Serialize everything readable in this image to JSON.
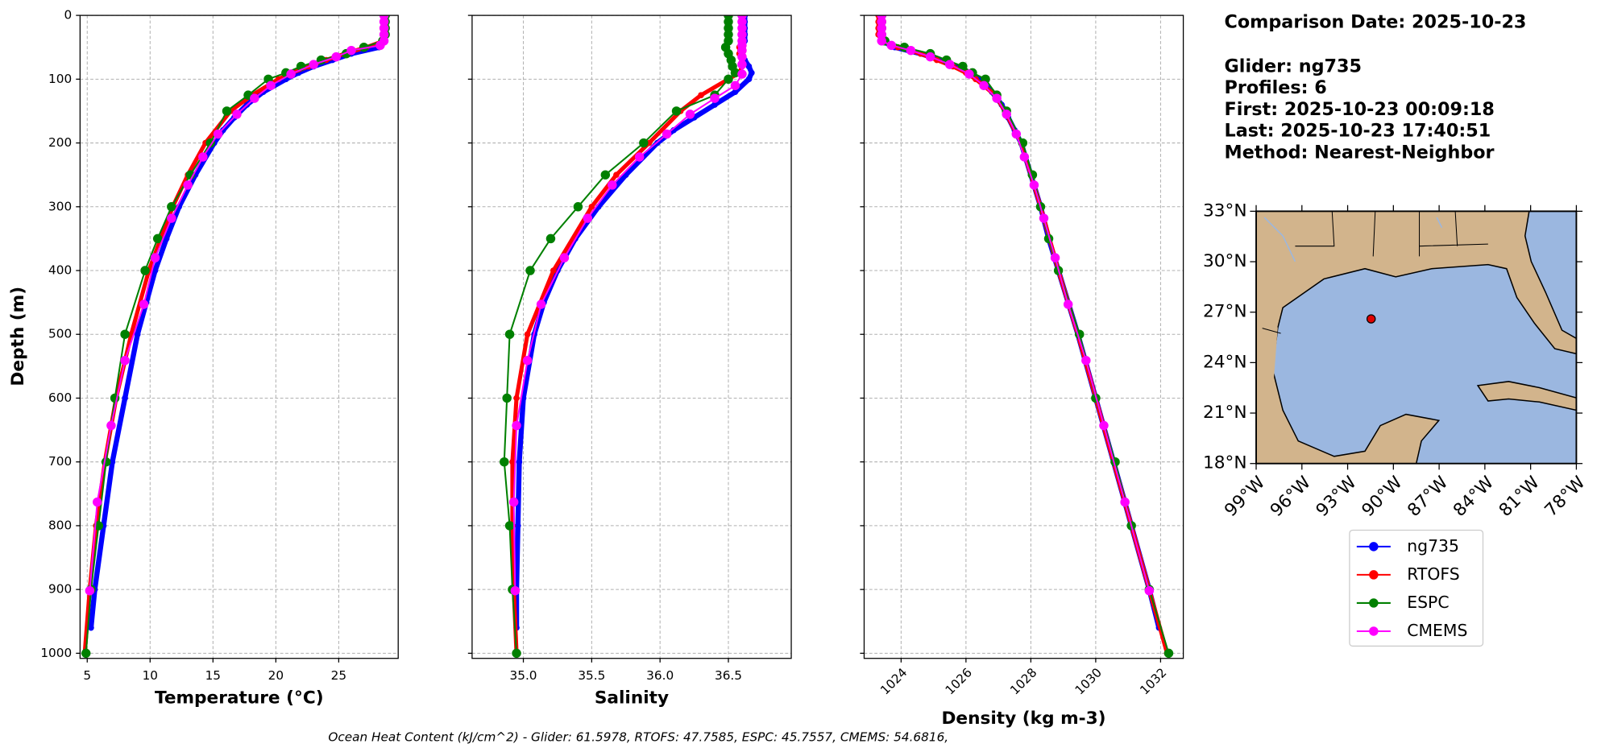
{
  "chart_data": [
    {
      "type": "line",
      "ylabel": "Depth (m)",
      "ylim": [
        0,
        1008
      ],
      "y_inverted": true,
      "yticks": [
        0,
        100,
        200,
        300,
        400,
        500,
        600,
        700,
        800,
        900,
        1000
      ],
      "grid": true,
      "panels": [
        {
          "xlabel": "Temperature (°C)",
          "xlim": [
            4.43,
            29.73
          ],
          "xticks": [
            5,
            10,
            15,
            20,
            25
          ]
        },
        {
          "xlabel": "Salinity",
          "xlim": [
            34.625,
            36.96
          ],
          "xticks": [
            {
              "value": 35,
              "label": "35.0"
            },
            {
              "value": 35.5,
              "label": "35.5"
            },
            {
              "value": 36,
              "label": "36.0"
            },
            {
              "value": 36.5,
              "label": "36.5"
            }
          ]
        },
        {
          "xlabel": "Density (kg m-3)",
          "xlim": [
            1022.86,
            1032.7
          ],
          "xticks": [
            1024,
            1026,
            1028,
            1030,
            1032
          ]
        }
      ],
      "series": [
        {
          "name": "ng735",
          "color": "#0000ff",
          "depth": [
            0,
            10,
            20,
            30,
            40,
            50,
            60,
            70,
            80,
            90,
            100,
            120,
            140,
            160,
            180,
            200,
            250,
            300,
            350,
            400,
            450,
            500,
            600,
            700,
            800,
            900,
            960
          ],
          "values": [
            [
              28.6,
              28.6,
              28.6,
              28.6,
              28.6,
              28.2,
              26,
              24.5,
              23,
              21.8,
              20.8,
              19,
              17.7,
              16.7,
              15.8,
              15.1,
              13.6,
              12.3,
              11.3,
              10.4,
              9.7,
              9.0,
              8.0,
              7.0,
              6.3,
              5.6,
              5.3
            ],
            [
              36.62,
              36.62,
              36.62,
              36.62,
              36.62,
              36.6,
              36.6,
              36.62,
              36.65,
              36.67,
              36.65,
              36.55,
              36.4,
              36.25,
              36.1,
              35.98,
              35.75,
              35.55,
              35.38,
              35.25,
              35.15,
              35.08,
              35.0,
              34.97,
              34.96,
              34.95,
              34.95
            ],
            [
              1023.4,
              1023.4,
              1023.4,
              1023.4,
              1023.4,
              1023.8,
              1024.6,
              1025.2,
              1025.7,
              1026.1,
              1026.4,
              1026.8,
              1027.1,
              1027.3,
              1027.5,
              1027.7,
              1028.0,
              1028.3,
              1028.55,
              1028.85,
              1029.15,
              1029.45,
              1030.0,
              1030.55,
              1031.1,
              1031.65,
              1031.95
            ]
          ]
        },
        {
          "name": "RTOFS",
          "color": "#ff0000",
          "depth": [
            0,
            10,
            20,
            30,
            40,
            50,
            60,
            70,
            80,
            90,
            100,
            125,
            150,
            200,
            250,
            300,
            400,
            500,
            600,
            700,
            800,
            900,
            1000
          ],
          "values": [
            [
              28.7,
              28.7,
              28.7,
              28.7,
              28.6,
              27.2,
              25.5,
              24,
              22.6,
              21.3,
              20.2,
              18.1,
              16.4,
              14.4,
              13.0,
              11.8,
              9.9,
              8.5,
              7.3,
              6.4,
              5.7,
              5.2,
              4.8
            ],
            [
              36.6,
              36.6,
              36.6,
              36.6,
              36.6,
              36.58,
              36.58,
              36.6,
              36.6,
              36.58,
              36.5,
              36.3,
              36.15,
              35.92,
              35.68,
              35.5,
              35.22,
              35.03,
              34.95,
              34.92,
              34.92,
              34.93,
              34.95
            ],
            [
              1023.3,
              1023.3,
              1023.3,
              1023.3,
              1023.4,
              1023.9,
              1024.6,
              1025.1,
              1025.6,
              1026.0,
              1026.3,
              1026.9,
              1027.2,
              1027.7,
              1028.0,
              1028.3,
              1028.85,
              1029.45,
              1030.0,
              1030.55,
              1031.1,
              1031.65,
              1032.2
            ]
          ]
        },
        {
          "name": "ESPC",
          "color": "#008000",
          "depth": [
            0,
            10,
            20,
            30,
            40,
            50,
            60,
            70,
            80,
            90,
            100,
            125,
            150,
            200,
            250,
            300,
            350,
            400,
            500,
            600,
            700,
            800,
            900,
            1000
          ],
          "values": [
            [
              28.7,
              28.7,
              28.7,
              28.7,
              28.5,
              27.0,
              25.6,
              23.6,
              22.0,
              20.8,
              19.4,
              17.8,
              16.1,
              14.8,
              13.2,
              11.7,
              10.6,
              9.6,
              8.0,
              7.2,
              6.5,
              5.9,
              5.3,
              4.9
            ],
            [
              36.5,
              36.5,
              36.5,
              36.5,
              36.5,
              36.48,
              36.5,
              36.52,
              36.53,
              36.55,
              36.5,
              36.4,
              36.12,
              35.88,
              35.6,
              35.4,
              35.2,
              35.05,
              34.9,
              34.88,
              34.86,
              34.9,
              34.92,
              34.95
            ],
            [
              1023.4,
              1023.4,
              1023.4,
              1023.4,
              1023.5,
              1024.1,
              1024.9,
              1025.4,
              1025.9,
              1026.2,
              1026.6,
              1026.95,
              1027.25,
              1027.75,
              1028.05,
              1028.3,
              1028.55,
              1028.85,
              1029.5,
              1030.0,
              1030.6,
              1031.1,
              1031.65,
              1032.25
            ]
          ]
        },
        {
          "name": "CMEMS",
          "color": "#ff00ff",
          "depth": [
            0,
            10,
            20,
            30,
            40,
            47,
            55,
            65,
            77,
            92,
            110,
            130,
            155,
            186,
            222,
            266,
            318,
            380,
            453,
            541,
            643,
            763,
            902
          ],
          "values": [
            [
              28.6,
              28.6,
              28.6,
              28.6,
              28.6,
              28.3,
              26,
              24.8,
              23,
              21.2,
              19.6,
              18.3,
              16.9,
              15.4,
              14.2,
              13.0,
              11.7,
              10.4,
              9.5,
              8.0,
              6.9,
              5.8,
              5.2
            ],
            [
              36.6,
              36.6,
              36.6,
              36.6,
              36.6,
              36.6,
              36.6,
              36.6,
              36.6,
              36.6,
              36.55,
              36.4,
              36.22,
              36.05,
              35.85,
              35.65,
              35.47,
              35.3,
              35.13,
              35.03,
              34.95,
              34.93,
              34.94
            ],
            [
              1023.4,
              1023.4,
              1023.4,
              1023.4,
              1023.4,
              1023.7,
              1024.3,
              1024.9,
              1025.5,
              1026.1,
              1026.55,
              1026.95,
              1027.25,
              1027.55,
              1027.8,
              1028.1,
              1028.4,
              1028.75,
              1029.15,
              1029.7,
              1030.25,
              1030.9,
              1031.65
            ]
          ]
        }
      ]
    },
    {
      "type": "map",
      "xlim": [
        -99,
        -78
      ],
      "ylim": [
        18,
        33
      ],
      "xticks": [
        {
          "value": -99,
          "label": "99°W"
        },
        {
          "value": -96,
          "label": "96°W"
        },
        {
          "value": -93,
          "label": "93°W"
        },
        {
          "value": -90,
          "label": "90°W"
        },
        {
          "value": -87,
          "label": "87°W"
        },
        {
          "value": -84,
          "label": "84°W"
        },
        {
          "value": -81,
          "label": "81°W"
        },
        {
          "value": -78,
          "label": "78°W"
        }
      ],
      "yticks": [
        {
          "value": 18,
          "label": "18°N"
        },
        {
          "value": 21,
          "label": "21°N"
        },
        {
          "value": 24,
          "label": "24°N"
        },
        {
          "value": 27,
          "label": "27°N"
        },
        {
          "value": 30,
          "label": "30°N"
        },
        {
          "value": 33,
          "label": "33°N"
        }
      ],
      "x": [
        -91.46
      ],
      "values": [
        26.6
      ],
      "color": "#e00000"
    }
  ],
  "info": [
    "Comparison Date: 2025-10-23",
    "Glider: ng735",
    "Profiles: 6",
    "First: 2025-10-23 00:09:18",
    "Last: 2025-10-23 17:40:51",
    "Method: Nearest-Neighbor"
  ],
  "footer": "Ocean Heat Content (kJ/cm^2) - Glider: 61.5978,  RTOFS: 47.7585,  ESPC: 45.7557,  CMEMS: 54.6816,"
}
